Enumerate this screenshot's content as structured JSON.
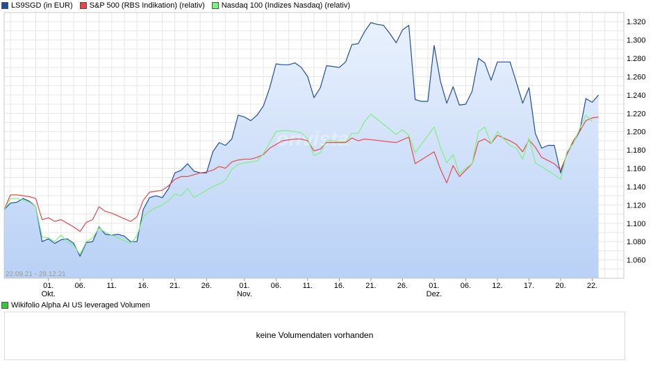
{
  "legend": [
    {
      "label": "LS9SGD (in EUR)",
      "color": "#1f4e9c"
    },
    {
      "label": "S&P 500 (RBS Indikation) (relativ)",
      "color": "#e8474a"
    },
    {
      "label": "Nasdaq 100 (Indizes Nasdaq) (relativ)",
      "color": "#7ef07e"
    }
  ],
  "date_range": "22.09.21 - 29.12.21",
  "watermark": "onvista",
  "volume": {
    "legend_label": "Wikifolio Alpha AI US leveraged Volumen",
    "legend_color": "#3cc43c",
    "message": "keine Volumendaten vorhanden"
  },
  "chart_data": {
    "type": "line",
    "x_tick_labels": [
      {
        "day": 7,
        "label": "01.",
        "sub": "Okt."
      },
      {
        "day": 12,
        "label": "06."
      },
      {
        "day": 17,
        "label": "11."
      },
      {
        "day": 22,
        "label": "16."
      },
      {
        "day": 27,
        "label": "21."
      },
      {
        "day": 32,
        "label": "26."
      },
      {
        "day": 38,
        "label": "01.",
        "sub": "Nov."
      },
      {
        "day": 43,
        "label": "06."
      },
      {
        "day": 48,
        "label": "11."
      },
      {
        "day": 53,
        "label": "16."
      },
      {
        "day": 58,
        "label": "21."
      },
      {
        "day": 63,
        "label": "26."
      },
      {
        "day": 68,
        "label": "01.",
        "sub": "Dez."
      },
      {
        "day": 73,
        "label": "06."
      },
      {
        "day": 78,
        "label": "12."
      },
      {
        "day": 83,
        "label": "17."
      },
      {
        "day": 88,
        "label": "20."
      },
      {
        "day": 93,
        "label": "22."
      }
    ],
    "x_range": [
      0,
      98
    ],
    "ylim": [
      1.04,
      1.33
    ],
    "y_ticks": [
      1.06,
      1.08,
      1.1,
      1.12,
      1.14,
      1.16,
      1.18,
      1.2,
      1.22,
      1.24,
      1.26,
      1.28,
      1.3,
      1.32
    ],
    "y_tick_labels": [
      "1.060",
      "1.080",
      "1.100",
      "1.120",
      "1.140",
      "1.160",
      "1.180",
      "1.200",
      "1.220",
      "1.240",
      "1.260",
      "1.280",
      "1.300",
      "1.320"
    ],
    "grid": true,
    "series": [
      {
        "name": "LS9SGD (in EUR)",
        "color": "#1f4e9c",
        "fill": true,
        "points": [
          [
            0,
            1.115
          ],
          [
            1,
            1.122
          ],
          [
            2,
            1.123
          ],
          [
            3,
            1.127
          ],
          [
            4,
            1.124
          ],
          [
            5,
            1.118
          ],
          [
            6,
            1.08
          ],
          [
            7,
            1.083
          ],
          [
            8,
            1.078
          ],
          [
            9,
            1.082
          ],
          [
            10,
            1.083
          ],
          [
            11,
            1.078
          ],
          [
            12,
            1.064
          ],
          [
            13,
            1.079
          ],
          [
            14,
            1.08
          ],
          [
            15,
            1.096
          ],
          [
            16,
            1.088
          ],
          [
            17,
            1.087
          ],
          [
            18,
            1.088
          ],
          [
            19,
            1.086
          ],
          [
            20,
            1.08
          ],
          [
            21,
            1.08
          ],
          [
            22,
            1.115
          ],
          [
            23,
            1.128
          ],
          [
            24,
            1.13
          ],
          [
            25,
            1.128
          ],
          [
            26,
            1.138
          ],
          [
            27,
            1.155
          ],
          [
            28,
            1.158
          ],
          [
            29,
            1.165
          ],
          [
            30,
            1.157
          ],
          [
            31,
            1.155
          ],
          [
            32,
            1.155
          ],
          [
            33,
            1.178
          ],
          [
            34,
            1.188
          ],
          [
            35,
            1.185
          ],
          [
            36,
            1.192
          ],
          [
            37,
            1.218
          ],
          [
            38,
            1.216
          ],
          [
            39,
            1.212
          ],
          [
            40,
            1.218
          ],
          [
            41,
            1.228
          ],
          [
            42,
            1.248
          ],
          [
            43,
            1.274
          ],
          [
            44,
            1.273
          ],
          [
            45,
            1.273
          ],
          [
            46,
            1.275
          ],
          [
            47,
            1.27
          ],
          [
            48,
            1.26
          ],
          [
            49,
            1.237
          ],
          [
            50,
            1.248
          ],
          [
            51,
            1.272
          ],
          [
            52,
            1.271
          ],
          [
            53,
            1.27
          ],
          [
            54,
            1.276
          ],
          [
            55,
            1.295
          ],
          [
            56,
            1.296
          ],
          [
            57,
            1.309
          ],
          [
            58,
            1.319
          ],
          [
            59,
            1.317
          ],
          [
            60,
            1.316
          ],
          [
            61,
            1.307
          ],
          [
            62,
            1.297
          ],
          [
            63,
            1.311
          ],
          [
            64,
            1.316
          ],
          [
            65,
            1.235
          ],
          [
            66,
            1.233
          ],
          [
            67,
            1.233
          ],
          [
            68,
            1.294
          ],
          [
            69,
            1.255
          ],
          [
            70,
            1.231
          ],
          [
            71,
            1.249
          ],
          [
            72,
            1.229
          ],
          [
            73,
            1.23
          ],
          [
            74,
            1.244
          ],
          [
            75,
            1.28
          ],
          [
            76,
            1.275
          ],
          [
            77,
            1.256
          ],
          [
            78,
            1.276
          ],
          [
            79,
            1.276
          ],
          [
            80,
            1.276
          ],
          [
            81,
            1.254
          ],
          [
            82,
            1.231
          ],
          [
            83,
            1.248
          ],
          [
            84,
            1.198
          ],
          [
            85,
            1.182
          ],
          [
            86,
            1.185
          ],
          [
            87,
            1.185
          ],
          [
            88,
            1.155
          ],
          [
            89,
            1.176
          ],
          [
            90,
            1.188
          ],
          [
            91,
            1.2
          ],
          [
            92,
            1.236
          ],
          [
            93,
            1.232
          ],
          [
            94,
            1.24
          ]
        ]
      },
      {
        "name": "S&P 500 (RBS Indikation) (relativ)",
        "color": "#e8474a",
        "fill": false,
        "points": [
          [
            0,
            1.115
          ],
          [
            1,
            1.131
          ],
          [
            2,
            1.131
          ],
          [
            3,
            1.13
          ],
          [
            4,
            1.129
          ],
          [
            5,
            1.127
          ],
          [
            6,
            1.104
          ],
          [
            7,
            1.106
          ],
          [
            8,
            1.102
          ],
          [
            9,
            1.104
          ],
          [
            10,
            1.1
          ],
          [
            11,
            1.096
          ],
          [
            12,
            1.091
          ],
          [
            13,
            1.101
          ],
          [
            14,
            1.104
          ],
          [
            15,
            1.118
          ],
          [
            16,
            1.113
          ],
          [
            17,
            1.111
          ],
          [
            18,
            1.108
          ],
          [
            19,
            1.105
          ],
          [
            20,
            1.102
          ],
          [
            21,
            1.107
          ],
          [
            22,
            1.125
          ],
          [
            23,
            1.134
          ],
          [
            24,
            1.135
          ],
          [
            25,
            1.136
          ],
          [
            26,
            1.141
          ],
          [
            27,
            1.148
          ],
          [
            28,
            1.151
          ],
          [
            29,
            1.151
          ],
          [
            30,
            1.153
          ],
          [
            31,
            1.155
          ],
          [
            32,
            1.156
          ],
          [
            33,
            1.158
          ],
          [
            34,
            1.162
          ],
          [
            35,
            1.16
          ],
          [
            36,
            1.167
          ],
          [
            37,
            1.169
          ],
          [
            38,
            1.17
          ],
          [
            39,
            1.17
          ],
          [
            40,
            1.172
          ],
          [
            41,
            1.175
          ],
          [
            42,
            1.182
          ],
          [
            43,
            1.186
          ],
          [
            44,
            1.19
          ],
          [
            45,
            1.191
          ],
          [
            46,
            1.192
          ],
          [
            47,
            1.192
          ],
          [
            48,
            1.19
          ],
          [
            49,
            1.179
          ],
          [
            50,
            1.181
          ],
          [
            51,
            1.188
          ],
          [
            52,
            1.188
          ],
          [
            53,
            1.188
          ],
          [
            54,
            1.188
          ],
          [
            55,
            1.193
          ],
          [
            56,
            1.19
          ],
          [
            57,
            1.192
          ],
          [
            62,
            1.188
          ],
          [
            64,
            1.194
          ],
          [
            65,
            1.165
          ],
          [
            68,
            1.178
          ],
          [
            69,
            1.159
          ],
          [
            70,
            1.144
          ],
          [
            71,
            1.163
          ],
          [
            72,
            1.151
          ],
          [
            73,
            1.158
          ],
          [
            74,
            1.165
          ],
          [
            75,
            1.189
          ],
          [
            76,
            1.192
          ],
          [
            77,
            1.187
          ],
          [
            78,
            1.196
          ],
          [
            80,
            1.19
          ],
          [
            81,
            1.186
          ],
          [
            82,
            1.178
          ],
          [
            83,
            1.191
          ],
          [
            84,
            1.183
          ],
          [
            85,
            1.172
          ],
          [
            87,
            1.165
          ],
          [
            88,
            1.158
          ],
          [
            89,
            1.175
          ],
          [
            90,
            1.19
          ],
          [
            91,
            1.2
          ],
          [
            92,
            1.212
          ],
          [
            93,
            1.215
          ],
          [
            94,
            1.216
          ]
        ]
      },
      {
        "name": "Nasdaq 100 (Indizes Nasdaq) (relativ)",
        "color": "#7ef07e",
        "fill": false,
        "points": [
          [
            0,
            1.115
          ],
          [
            1,
            1.127
          ],
          [
            2,
            1.127
          ],
          [
            3,
            1.125
          ],
          [
            4,
            1.123
          ],
          [
            5,
            1.118
          ],
          [
            6,
            1.085
          ],
          [
            7,
            1.084
          ],
          [
            8,
            1.08
          ],
          [
            9,
            1.087
          ],
          [
            10,
            1.08
          ],
          [
            11,
            1.076
          ],
          [
            12,
            1.066
          ],
          [
            13,
            1.08
          ],
          [
            14,
            1.084
          ],
          [
            15,
            1.095
          ],
          [
            16,
            1.09
          ],
          [
            17,
            1.087
          ],
          [
            18,
            1.084
          ],
          [
            19,
            1.081
          ],
          [
            20,
            1.078
          ],
          [
            21,
            1.086
          ],
          [
            22,
            1.107
          ],
          [
            23,
            1.113
          ],
          [
            24,
            1.117
          ],
          [
            25,
            1.12
          ],
          [
            26,
            1.125
          ],
          [
            27,
            1.132
          ],
          [
            28,
            1.13
          ],
          [
            29,
            1.138
          ],
          [
            30,
            1.128
          ],
          [
            31,
            1.132
          ],
          [
            32,
            1.136
          ],
          [
            33,
            1.14
          ],
          [
            34,
            1.143
          ],
          [
            35,
            1.147
          ],
          [
            36,
            1.159
          ],
          [
            37,
            1.164
          ],
          [
            38,
            1.166
          ],
          [
            39,
            1.167
          ],
          [
            40,
            1.168
          ],
          [
            41,
            1.176
          ],
          [
            42,
            1.188
          ],
          [
            43,
            1.2
          ],
          [
            44,
            1.201
          ],
          [
            45,
            1.201
          ],
          [
            46,
            1.2
          ],
          [
            47,
            1.199
          ],
          [
            48,
            1.192
          ],
          [
            49,
            1.174
          ],
          [
            50,
            1.177
          ],
          [
            51,
            1.19
          ],
          [
            52,
            1.19
          ],
          [
            53,
            1.189
          ],
          [
            54,
            1.189
          ],
          [
            55,
            1.198
          ],
          [
            56,
            1.198
          ],
          [
            57,
            1.211
          ],
          [
            58,
            1.219
          ],
          [
            62,
            1.197
          ],
          [
            63,
            1.202
          ],
          [
            64,
            1.196
          ],
          [
            65,
            1.177
          ],
          [
            68,
            1.205
          ],
          [
            69,
            1.183
          ],
          [
            70,
            1.166
          ],
          [
            71,
            1.175
          ],
          [
            72,
            1.154
          ],
          [
            73,
            1.16
          ],
          [
            74,
            1.165
          ],
          [
            75,
            1.2
          ],
          [
            76,
            1.205
          ],
          [
            77,
            1.187
          ],
          [
            78,
            1.2
          ],
          [
            79,
            1.192
          ],
          [
            80,
            1.185
          ],
          [
            81,
            1.182
          ],
          [
            82,
            1.17
          ],
          [
            83,
            1.193
          ],
          [
            84,
            1.166
          ],
          [
            87,
            1.153
          ],
          [
            88,
            1.148
          ],
          [
            89,
            1.178
          ],
          [
            90,
            1.187
          ],
          [
            91,
            1.203
          ],
          [
            92,
            1.218
          ],
          [
            93,
            1.211
          ]
        ]
      }
    ]
  }
}
